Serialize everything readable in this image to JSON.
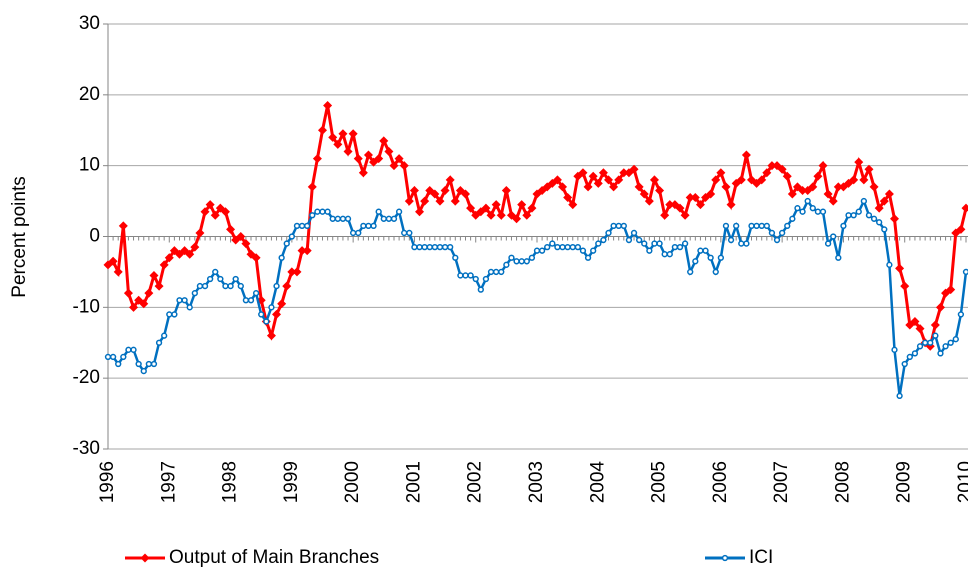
{
  "chart_data": {
    "type": "line",
    "y_label": "Percent points",
    "categories": [
      "1996",
      null,
      null,
      null,
      null,
      null,
      null,
      null,
      null,
      null,
      null,
      null,
      "1997",
      null,
      null,
      null,
      null,
      null,
      null,
      null,
      null,
      null,
      null,
      null,
      "1998",
      null,
      null,
      null,
      null,
      null,
      null,
      null,
      null,
      null,
      null,
      null,
      "1999",
      null,
      null,
      null,
      null,
      null,
      null,
      null,
      null,
      null,
      null,
      null,
      "2000",
      null,
      null,
      null,
      null,
      null,
      null,
      null,
      null,
      null,
      null,
      null,
      "2001",
      null,
      null,
      null,
      null,
      null,
      null,
      null,
      null,
      null,
      null,
      null,
      "2002",
      null,
      null,
      null,
      null,
      null,
      null,
      null,
      null,
      null,
      null,
      null,
      "2003",
      null,
      null,
      null,
      null,
      null,
      null,
      null,
      null,
      null,
      null,
      null,
      "2004",
      null,
      null,
      null,
      null,
      null,
      null,
      null,
      null,
      null,
      null,
      null,
      "2005",
      null,
      null,
      null,
      null,
      null,
      null,
      null,
      null,
      null,
      null,
      null,
      "2006",
      null,
      null,
      null,
      null,
      null,
      null,
      null,
      null,
      null,
      null,
      null,
      "2007",
      null,
      null,
      null,
      null,
      null,
      null,
      null,
      null,
      null,
      null,
      null,
      "2008",
      null,
      null,
      null,
      null,
      null,
      null,
      null,
      null,
      null,
      null,
      null,
      "2009",
      null,
      null,
      null,
      null,
      null,
      null,
      null,
      null,
      null,
      null,
      null,
      "2010"
    ],
    "series": [
      {
        "name": "Output of Main Branches",
        "color": "#ff0000",
        "marker": "diamond",
        "values": [
          -4,
          -3.5,
          -5,
          1.5,
          -8,
          -10,
          -9,
          -9.5,
          -8,
          -5.5,
          -7,
          -4,
          -3,
          -2,
          -2.5,
          -2,
          -2.5,
          -1.5,
          0.5,
          3.5,
          4.5,
          3,
          4,
          3.5,
          1,
          -0.5,
          0,
          -1,
          -2.5,
          -3,
          -9,
          -12,
          -14,
          -11,
          -9.5,
          -7,
          -5,
          -5,
          -2,
          -2,
          7,
          11,
          15,
          18.5,
          14,
          13,
          14.5,
          12,
          14.5,
          11,
          9,
          11.5,
          10.5,
          11,
          13.5,
          12,
          10,
          11,
          10,
          5,
          6.5,
          3.5,
          5,
          6.5,
          6,
          5,
          6.5,
          8,
          5,
          6.5,
          6,
          4,
          3,
          3.5,
          4,
          3,
          4.5,
          3,
          6.5,
          3,
          2.5,
          4.5,
          3,
          4,
          6,
          6.5,
          7,
          7.5,
          8,
          7,
          5.5,
          4.5,
          8.5,
          9,
          7,
          8.5,
          7.5,
          9,
          8,
          7,
          8,
          9,
          9,
          9.5,
          7,
          6,
          5,
          8,
          6.5,
          3,
          4.5,
          4.5,
          4,
          3,
          5.5,
          5.5,
          4.5,
          5.5,
          6,
          8,
          9,
          7,
          4.5,
          7.5,
          8,
          11.5,
          8,
          7.5,
          8,
          9,
          10,
          10,
          9.5,
          8.5,
          6,
          7,
          6.5,
          6.5,
          7,
          8.5,
          10,
          6,
          5,
          7,
          7,
          7.5,
          8,
          10.5,
          8,
          9.5,
          7,
          4,
          5,
          6,
          2.5,
          -4.5,
          -7,
          -12.5,
          -12,
          -13,
          -15,
          -15.5,
          -12.5,
          -10,
          -8,
          -7.5,
          0.5,
          1,
          4
        ]
      },
      {
        "name": "ICI",
        "color": "#0070c0",
        "marker": "circle",
        "values": [
          -17,
          -17,
          -18,
          -17,
          -16,
          -16,
          -18,
          -19,
          -18,
          -18,
          -15,
          -14,
          -11,
          -11,
          -9,
          -9,
          -10,
          -8,
          -7,
          -7,
          -6,
          -5,
          -6,
          -7,
          -7,
          -6,
          -7,
          -9,
          -9,
          -8,
          -11,
          -12,
          -10,
          -7,
          -3,
          -1,
          0,
          1.5,
          1.5,
          1.5,
          3,
          3.5,
          3.5,
          3.5,
          2.5,
          2.5,
          2.5,
          2.5,
          0.5,
          0.5,
          1.5,
          1.5,
          1.5,
          3.5,
          2.5,
          2.5,
          2.5,
          3.5,
          0.5,
          0.5,
          -1.5,
          -1.5,
          -1.5,
          -1.5,
          -1.5,
          -1.5,
          -1.5,
          -1.5,
          -3,
          -5.5,
          -5.5,
          -5.5,
          -6,
          -7.5,
          -6,
          -5,
          -5,
          -5,
          -4,
          -3,
          -3.5,
          -3.5,
          -3.5,
          -3,
          -2,
          -2,
          -1.5,
          -1,
          -1.5,
          -1.5,
          -1.5,
          -1.5,
          -1.5,
          -2,
          -3,
          -2,
          -1,
          -0.5,
          0.5,
          1.5,
          1.5,
          1.5,
          -0.5,
          0.5,
          -0.5,
          -1,
          -2,
          -1,
          -1,
          -2.5,
          -2.5,
          -1.5,
          -1.5,
          -1,
          -5,
          -3.5,
          -2,
          -2,
          -3,
          -5,
          -3,
          1.5,
          -0.5,
          1.5,
          -1,
          -1,
          1.5,
          1.5,
          1.5,
          1.5,
          0.5,
          -0.5,
          0.5,
          1.5,
          2.5,
          4,
          3.5,
          5,
          4,
          3.5,
          3.5,
          -1,
          0,
          -3,
          1.5,
          3,
          3,
          3.5,
          5,
          3,
          2.5,
          2,
          1,
          -4,
          -16,
          -22.5,
          -18,
          -17,
          -16.5,
          -15.5,
          -15,
          -15,
          -14,
          -16.5,
          -15.5,
          -15,
          -14.5,
          -11,
          -5
        ]
      }
    ],
    "ylim": [
      -30,
      30
    ],
    "yticks": [
      -30,
      -20,
      -10,
      0,
      10,
      20,
      30
    ],
    "grid": true,
    "legend": "bottom"
  }
}
